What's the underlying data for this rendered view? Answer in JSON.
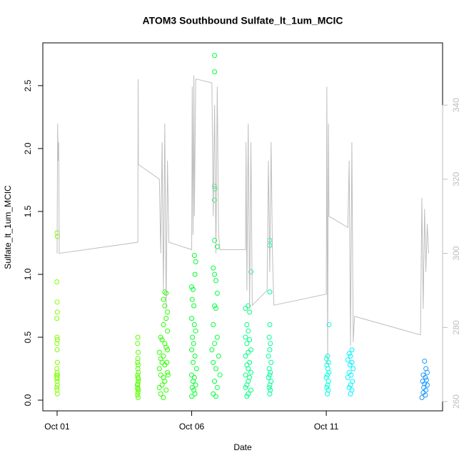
{
  "chart_data": {
    "type": "scatter",
    "title": "ATOM3 Southbound Sulfate_lt_1um_MCIC",
    "x_label": "Date",
    "y_label": "Sulfate_lt_1um_MCIC",
    "xlim": [
      -0.53,
      14.32
    ],
    "xticks": [
      {
        "value": 0,
        "label": "Oct 01"
      },
      {
        "value": 5,
        "label": "Oct 06"
      },
      {
        "value": 10,
        "label": "Oct 11"
      }
    ],
    "ylim": [
      -0.085,
      2.84
    ],
    "yticks": [
      {
        "value": 0,
        "label": "0.0"
      },
      0.5,
      {
        "value": 1,
        "label": "1.0"
      },
      1.5,
      {
        "value": 2,
        "label": "2.0"
      },
      2.5
    ],
    "y2lim": [
      257.5,
      356.8
    ],
    "y2ticks": [
      260,
      280,
      300,
      320,
      340
    ],
    "y2_color": "#bebebe",
    "series": [
      {
        "color": "#80ff00",
        "x": [
          0,
          0.01,
          -0.01,
          0,
          0.01,
          -0.01,
          0,
          0.01,
          -0.01,
          0,
          0.01,
          -0.01,
          0,
          0.01,
          -0.01,
          0,
          0.01,
          -0.01,
          0,
          0.01,
          -0.01,
          0
        ],
        "values": [
          1.33,
          1.3,
          0.94,
          0.78,
          0.7,
          0.65,
          0.5,
          0.48,
          0.45,
          0.4,
          0.3,
          0.25,
          0.22,
          0.2,
          0.18,
          0.15,
          0.12,
          0.1,
          0.08,
          0.05,
          0.2,
          0.17
        ]
      },
      {
        "color": "#55ff00",
        "x": [
          3.0,
          2.99,
          3.01,
          3.0,
          2.99,
          3.01,
          3.0,
          3.02,
          2.99,
          3.0,
          3.01,
          2.98,
          3.0,
          3.02,
          3.0,
          2.99,
          3.01,
          3.0,
          3.02,
          2.99
        ],
        "values": [
          0.5,
          0.45,
          0.38,
          0.33,
          0.3,
          0.28,
          0.25,
          0.22,
          0.2,
          0.18,
          0.15,
          0.12,
          0.1,
          0.08,
          0.06,
          0.04,
          0.02,
          0.13,
          0.17,
          0.09
        ]
      },
      {
        "color": "#2bff00",
        "x": [
          4.0,
          4.05,
          3.95,
          4.0,
          4.1,
          4.05,
          3.95,
          4.1,
          3.85,
          3.9,
          4.0,
          4.05,
          4.1,
          3.8,
          3.95,
          3.85,
          3.9,
          4.0,
          3.8,
          4.1,
          3.85,
          3.95,
          4.0,
          3.9,
          3.8,
          4.05,
          3.85,
          3.95,
          4.08,
          4.12
        ],
        "values": [
          0.86,
          0.85,
          0.8,
          0.75,
          0.7,
          0.65,
          0.6,
          0.55,
          0.5,
          0.48,
          0.45,
          0.42,
          0.4,
          0.38,
          0.35,
          0.33,
          0.3,
          0.28,
          0.25,
          0.22,
          0.2,
          0.18,
          0.15,
          0.12,
          0.1,
          0.08,
          0.05,
          0.02,
          0.3,
          0.2
        ]
      },
      {
        "color": "#00ff2b",
        "x": [
          5.1,
          5.15,
          5.12,
          5.0,
          5.05,
          5.02,
          5.08,
          5.0,
          5.1,
          5.15,
          5.03,
          5.07,
          5.0,
          5.12,
          5.05,
          5.18,
          5.0,
          5.1,
          5.05,
          5.15,
          5.02,
          5.08,
          5.12,
          5.0
        ],
        "values": [
          1.15,
          1.1,
          1.0,
          0.9,
          0.88,
          0.8,
          0.75,
          0.65,
          0.6,
          0.55,
          0.5,
          0.45,
          0.4,
          0.35,
          0.3,
          0.25,
          0.2,
          0.18,
          0.15,
          0.12,
          0.1,
          0.08,
          0.05,
          0.03
        ]
      },
      {
        "color": "#00ff40",
        "x": [
          5.85,
          5.85,
          5.85,
          5.86,
          5.85,
          5.85,
          5.95,
          5.8,
          5.85,
          5.9,
          5.95,
          5.85,
          5.9,
          5.8,
          5.95,
          5.85,
          5.75,
          6.0,
          5.8,
          5.9,
          6.05,
          5.85,
          5.95,
          5.8,
          5.9
        ],
        "values": [
          2.74,
          2.61,
          1.7,
          1.68,
          1.59,
          1.27,
          1.22,
          1.05,
          1.0,
          0.95,
          0.85,
          0.75,
          0.73,
          0.6,
          0.5,
          0.45,
          0.4,
          0.35,
          0.3,
          0.25,
          0.2,
          0.15,
          0.1,
          0.05,
          0.03
        ]
      },
      {
        "color": "#00ff80",
        "x": [
          7.2,
          7.1,
          7.0,
          7.15,
          7.05,
          7.1,
          7.0,
          7.15,
          7.05,
          7.2,
          7.1,
          7.0,
          7.15,
          7.05,
          7.1,
          7.2,
          7.0,
          7.15,
          7.1,
          7.05,
          7.0,
          7.2,
          7.1,
          7.05
        ],
        "values": [
          1.02,
          0.75,
          0.73,
          0.7,
          0.6,
          0.55,
          0.5,
          0.48,
          0.45,
          0.4,
          0.38,
          0.35,
          0.3,
          0.28,
          0.25,
          0.22,
          0.2,
          0.18,
          0.15,
          0.12,
          0.1,
          0.08,
          0.05,
          0.03
        ]
      },
      {
        "color": "#00ff99",
        "x": [
          7.9,
          7.9,
          7.9,
          7.9,
          7.88,
          7.92,
          7.9,
          7.85,
          7.95,
          7.88,
          7.92,
          7.9,
          7.85,
          7.95,
          7.9,
          7.88,
          7.92,
          7.9
        ],
        "values": [
          1.27,
          1.23,
          0.86,
          0.6,
          0.5,
          0.45,
          0.4,
          0.35,
          0.3,
          0.25,
          0.22,
          0.2,
          0.18,
          0.15,
          0.12,
          0.1,
          0.08,
          0.05
        ]
      },
      {
        "color": "#00ffdd",
        "x": [
          10.1,
          10.05,
          10.0,
          10.08,
          10.02,
          10.06,
          10.1,
          10.04,
          10.0,
          10.08,
          10.05,
          10.02,
          10.07,
          10.04
        ],
        "values": [
          0.6,
          0.35,
          0.33,
          0.3,
          0.28,
          0.25,
          0.22,
          0.2,
          0.18,
          0.15,
          0.12,
          0.1,
          0.08,
          0.05
        ]
      },
      {
        "color": "#00f5ff",
        "x": [
          10.95,
          10.85,
          10.9,
          10.8,
          10.95,
          10.88,
          11.0,
          10.85,
          10.92,
          10.8,
          10.97,
          10.9,
          10.85,
          10.95,
          10.9
        ],
        "values": [
          0.4,
          0.37,
          0.35,
          0.32,
          0.3,
          0.28,
          0.25,
          0.22,
          0.2,
          0.18,
          0.15,
          0.12,
          0.1,
          0.08,
          0.05
        ]
      },
      {
        "color": "#1a99ff",
        "x": [
          13.65,
          13.7,
          13.75,
          13.6,
          13.68,
          13.72,
          13.58,
          13.65,
          13.75,
          13.62,
          13.7,
          13.6,
          13.68,
          13.55
        ],
        "values": [
          0.31,
          0.25,
          0.22,
          0.2,
          0.18,
          0.16,
          0.15,
          0.13,
          0.12,
          0.1,
          0.08,
          0.06,
          0.04,
          0.02
        ]
      },
      {
        "color": "#bebebe",
        "axis": "y2",
        "x": [
          0,
          0.02,
          0.04,
          0.06,
          0.08,
          3.0,
          3.01,
          3.02,
          3.8,
          3.85,
          3.9,
          3.95,
          4.0,
          4.05,
          4.1,
          4.15,
          5.0,
          5.02,
          5.05,
          5.08,
          5.1,
          5.15,
          5.2,
          5.75,
          5.8,
          5.85,
          5.9,
          5.95,
          6.0,
          6.05,
          7.0,
          7.02,
          7.05,
          7.1,
          7.15,
          7.2,
          7.25,
          7.8,
          7.85,
          7.9,
          7.95,
          8.0,
          8.05,
          10.0,
          10.02,
          10.05,
          10.08,
          10.1,
          10.8,
          10.85,
          10.9,
          10.95,
          11.0,
          11.05,
          13.5,
          13.55,
          13.6,
          13.65,
          13.7,
          13.75,
          13.8
        ],
        "values": [
          300,
          335,
          325,
          330,
          300,
          303,
          347,
          324,
          320,
          300,
          330,
          290,
          335,
          285,
          325,
          303,
          301,
          345,
          305,
          348,
          310,
          347,
          347,
          346,
          310,
          340,
          300,
          345,
          305,
          301,
          301,
          330,
          290,
          335,
          285,
          330,
          286,
          290,
          325,
          295,
          330,
          300,
          286,
          289,
          345,
          270,
          335,
          310,
          307,
          325,
          275,
          330,
          276,
          283,
          278,
          315,
          285,
          312,
          295,
          308,
          300
        ]
      }
    ]
  }
}
